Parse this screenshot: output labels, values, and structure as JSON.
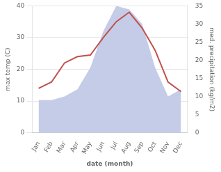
{
  "chart_data": {
    "type": "line",
    "xlabel": "date (month)",
    "ylabel": "max temp (C)",
    "y2label": "med. precipitation (kg/m2)",
    "categories": [
      "Jan",
      "Feb",
      "Mar",
      "Apr",
      "May",
      "Jun",
      "Jul",
      "Aug",
      "Sep",
      "Oct",
      "Nov",
      "Dec"
    ],
    "series": [
      {
        "type": "area",
        "axis": "y2",
        "color": "#c5cce8",
        "values": [
          9,
          9,
          10,
          12,
          18,
          28,
          35,
          34,
          30,
          18,
          10,
          12
        ]
      },
      {
        "type": "line",
        "color": "#c0504d",
        "values": [
          14,
          16,
          22,
          24,
          24.5,
          30,
          35,
          38,
          33,
          26,
          16,
          13
        ]
      }
    ],
    "ylim": [
      0,
      40
    ],
    "yticks": [
      0,
      10,
      20,
      30,
      40
    ],
    "y2lim": [
      0,
      35
    ],
    "y2ticks": [
      0,
      5,
      10,
      15,
      20,
      25,
      30,
      35
    ],
    "grid": true
  }
}
